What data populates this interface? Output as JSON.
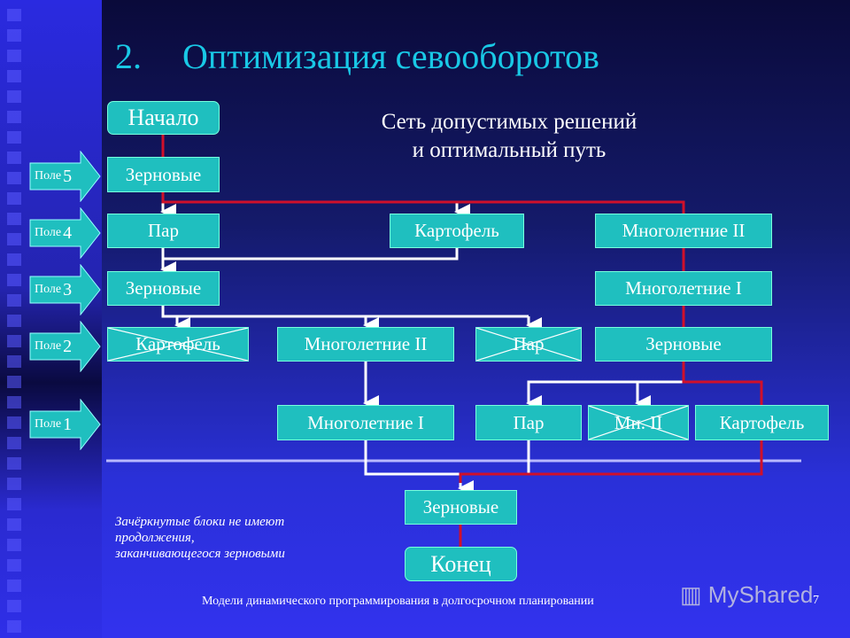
{
  "title": {
    "number": "2.",
    "text": "Оптимизация севооборотов"
  },
  "subtitle": [
    "Сеть допустимых решений",
    "и оптимальный путь"
  ],
  "fields": [
    {
      "label": "Поле",
      "num": "5"
    },
    {
      "label": "Поле",
      "num": "4"
    },
    {
      "label": "Поле",
      "num": "3"
    },
    {
      "label": "Поле",
      "num": "2"
    },
    {
      "label": "Поле",
      "num": "1"
    }
  ],
  "nodes": {
    "start": "Начало",
    "f5_grain": "Зерновые",
    "f4_fallow": "Пар",
    "f4_potato": "Картофель",
    "f4_perennial2": "Многолетние II",
    "f3_grain": "Зерновые",
    "f3_perennial1": "Многолетние I",
    "f2_potato": "Картофель",
    "f2_perennial2": "Многолетние II",
    "f2_fallow": "Пар",
    "f2_grain": "Зерновые",
    "f1_perennial1": "Многолетние I",
    "f1_fallow": "Пар",
    "f1_mn2": "Мн. II",
    "f1_potato": "Картофель",
    "end_grain": "Зерновые",
    "end": "Конец"
  },
  "crossed_nodes": [
    "f2_potato",
    "f2_fallow",
    "f1_mn2"
  ],
  "note": [
    "Зачёркнутые блоки не имеют",
    "продолжения,",
    "заканчивающегося зерновыми"
  ],
  "footer": "Модели динамического программирования в долгосрочном планировании",
  "page_number": "7",
  "watermark": "MyShared",
  "colors": {
    "box": "#1fbfbf",
    "optimal_path": "#d0102a",
    "path": "#ffffff",
    "title": "#19c8e6"
  }
}
